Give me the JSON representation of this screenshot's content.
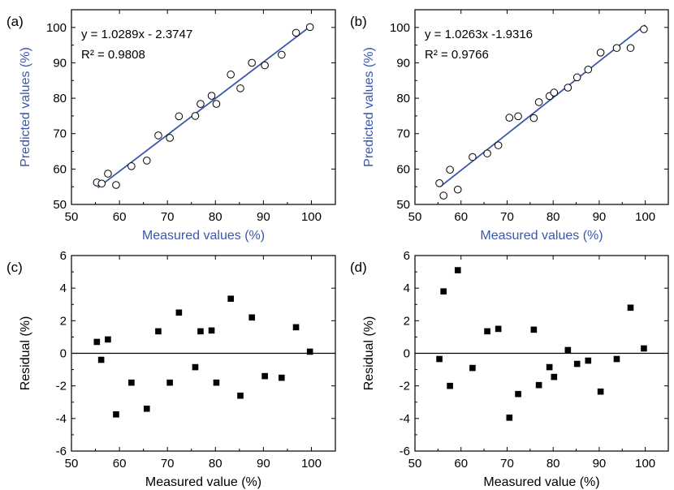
{
  "chart_data": [
    {
      "panel_label": "(a)",
      "type": "scatter",
      "xlabel": "Measured values (%)",
      "ylabel": "Predicted values (%)",
      "xlim": [
        50,
        105
      ],
      "ylim": [
        50,
        105
      ],
      "xticks": [
        50,
        60,
        70,
        80,
        90,
        100
      ],
      "yticks": [
        50,
        60,
        70,
        80,
        90,
        100
      ],
      "equation": "y = 1.0289x - 2.3747",
      "r2": "R² = 0.9808",
      "fit": {
        "slope": 1.0289,
        "intercept": -2.3747,
        "x_range": [
          55.5,
          100
        ]
      },
      "colors": {
        "axis_label": "#3b58a8",
        "fit_line": "#3b58a8",
        "marker": "#000000"
      },
      "marker": "open-circle",
      "points": [
        [
          55.3,
          56.2
        ],
        [
          56.3,
          55.9
        ],
        [
          57.6,
          58.7
        ],
        [
          59.3,
          55.5
        ],
        [
          62.5,
          60.8
        ],
        [
          65.7,
          62.4
        ],
        [
          68.1,
          69.5
        ],
        [
          70.5,
          68.8
        ],
        [
          72.4,
          74.9
        ],
        [
          75.8,
          75.0
        ],
        [
          76.9,
          78.4
        ],
        [
          79.2,
          80.7
        ],
        [
          80.2,
          78.4
        ],
        [
          83.2,
          86.7
        ],
        [
          85.2,
          82.8
        ],
        [
          87.6,
          90.0
        ],
        [
          90.3,
          89.3
        ],
        [
          93.8,
          92.3
        ],
        [
          96.8,
          98.5
        ],
        [
          99.7,
          100.1
        ]
      ]
    },
    {
      "panel_label": "(b)",
      "type": "scatter",
      "xlabel": "Measured values (%)",
      "ylabel": "Predicted values (%)",
      "xlim": [
        50,
        105
      ],
      "ylim": [
        50,
        105
      ],
      "xticks": [
        50,
        60,
        70,
        80,
        90,
        100
      ],
      "yticks": [
        50,
        60,
        70,
        80,
        90,
        100
      ],
      "equation": "y = 1.0263x -1.9316",
      "r2": "R² = 0.9766",
      "fit": {
        "slope": 1.0263,
        "intercept": -1.9316,
        "x_range": [
          55.5,
          100
        ]
      },
      "colors": {
        "axis_label": "#3b58a8",
        "fit_line": "#3b58a8",
        "marker": "#000000"
      },
      "marker": "open-circle",
      "points": [
        [
          55.3,
          56.0
        ],
        [
          56.2,
          52.5
        ],
        [
          57.6,
          59.8
        ],
        [
          59.3,
          54.2
        ],
        [
          62.5,
          63.4
        ],
        [
          65.7,
          64.4
        ],
        [
          68.1,
          66.7
        ],
        [
          70.5,
          74.5
        ],
        [
          72.4,
          74.9
        ],
        [
          75.8,
          74.4
        ],
        [
          76.9,
          78.9
        ],
        [
          79.2,
          80.6
        ],
        [
          80.2,
          81.6
        ],
        [
          83.2,
          83.0
        ],
        [
          85.2,
          85.9
        ],
        [
          87.6,
          88.1
        ],
        [
          90.3,
          92.9
        ],
        [
          93.8,
          94.2
        ],
        [
          96.8,
          94.2
        ],
        [
          99.7,
          99.5
        ]
      ]
    },
    {
      "panel_label": "(c)",
      "type": "scatter",
      "xlabel": "Measured value (%)",
      "ylabel": "Residual (%)",
      "xlim": [
        50,
        105
      ],
      "ylim": [
        -6,
        6
      ],
      "xticks": [
        50,
        60,
        70,
        80,
        90,
        100
      ],
      "yticks": [
        -6,
        -4,
        -2,
        0,
        2,
        4,
        6
      ],
      "zero_line": true,
      "colors": {
        "axis_label": "#000000",
        "marker": "#000000"
      },
      "marker": "filled-square",
      "points": [
        [
          55.3,
          0.7
        ],
        [
          56.2,
          -0.4
        ],
        [
          57.6,
          0.85
        ],
        [
          59.3,
          -3.75
        ],
        [
          62.5,
          -1.8
        ],
        [
          65.7,
          -3.4
        ],
        [
          68.1,
          1.35
        ],
        [
          70.5,
          -1.8
        ],
        [
          72.4,
          2.5
        ],
        [
          75.8,
          -0.85
        ],
        [
          76.9,
          1.35
        ],
        [
          79.2,
          1.4
        ],
        [
          80.2,
          -1.8
        ],
        [
          83.2,
          3.35
        ],
        [
          85.2,
          -2.6
        ],
        [
          87.6,
          2.2
        ],
        [
          90.3,
          -1.4
        ],
        [
          93.8,
          -1.5
        ],
        [
          96.8,
          1.6
        ],
        [
          99.7,
          0.1
        ]
      ]
    },
    {
      "panel_label": "(d)",
      "type": "scatter",
      "xlabel": "Measured value (%)",
      "ylabel": "Residual (%)",
      "xlim": [
        50,
        105
      ],
      "ylim": [
        -6,
        6
      ],
      "xticks": [
        50,
        60,
        70,
        80,
        90,
        100
      ],
      "yticks": [
        -6,
        -4,
        -2,
        0,
        2,
        4,
        6
      ],
      "zero_line": true,
      "colors": {
        "axis_label": "#000000",
        "marker": "#000000"
      },
      "marker": "filled-square",
      "points": [
        [
          55.3,
          -0.35
        ],
        [
          56.2,
          3.8
        ],
        [
          57.6,
          -2.0
        ],
        [
          59.3,
          5.1
        ],
        [
          62.5,
          -0.9
        ],
        [
          65.7,
          1.35
        ],
        [
          68.1,
          1.5
        ],
        [
          70.5,
          -3.95
        ],
        [
          72.4,
          -2.5
        ],
        [
          75.8,
          1.45
        ],
        [
          76.9,
          -1.95
        ],
        [
          79.2,
          -0.85
        ],
        [
          80.2,
          -1.45
        ],
        [
          83.2,
          0.2
        ],
        [
          85.2,
          -0.65
        ],
        [
          87.6,
          -0.45
        ],
        [
          90.3,
          -2.35
        ],
        [
          93.8,
          -0.35
        ],
        [
          96.8,
          2.8
        ],
        [
          99.7,
          0.3
        ]
      ]
    }
  ]
}
